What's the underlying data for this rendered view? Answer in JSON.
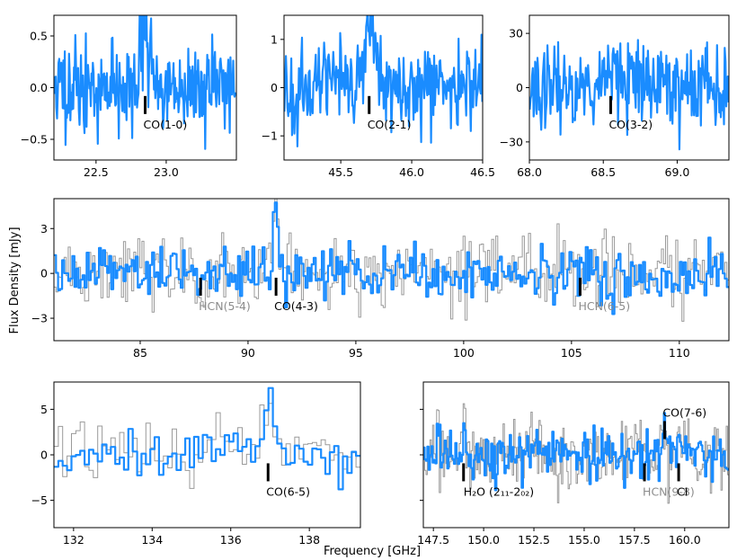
{
  "figure": {
    "ylabel": "Flux Density [mJy]",
    "xlabel": "Frequency [GHz]"
  },
  "colors": {
    "spectrum": "#1a8cff",
    "model": "#9a9a9a",
    "marker": "#000000",
    "line_label_detected": "#000000",
    "line_label_undetected": "#8c8c8c"
  },
  "chart_data": [
    {
      "type": "line",
      "panel": "CO(1-0)",
      "xlim": [
        22.2,
        23.5
      ],
      "ylim": [
        -0.7,
        0.7
      ],
      "xticks": [
        "22.5",
        "23.0"
      ],
      "yticks": [
        "-0.5",
        "0.0",
        "0.5"
      ],
      "peak": 0.57,
      "lines": [
        {
          "label": "CO(1-0)",
          "freq": 22.85,
          "detected": true
        }
      ]
    },
    {
      "type": "line",
      "panel": "CO(2-1)",
      "xlim": [
        45.1,
        46.5
      ],
      "ylim": [
        -1.5,
        1.5
      ],
      "xticks": [
        "45.5",
        "46.0",
        "46.5"
      ],
      "yticks": [
        "-1",
        "0",
        "1"
      ],
      "peak": 1.3,
      "lines": [
        {
          "label": "CO(2-1)",
          "freq": 45.7,
          "detected": true
        }
      ]
    },
    {
      "type": "line",
      "panel": "CO(3-2)",
      "xlim": [
        68.0,
        69.35
      ],
      "ylim": [
        -40,
        40
      ],
      "xticks": [
        "68.0",
        "68.5",
        "69.0"
      ],
      "yticks": [
        "-30",
        "0",
        "30"
      ],
      "peak": 12,
      "lines": [
        {
          "label": "CO(3-2)",
          "freq": 68.55,
          "detected": true
        }
      ]
    },
    {
      "type": "line",
      "panel": "85-112 GHz",
      "xlim": [
        81.0,
        112.3
      ],
      "ylim": [
        -4.5,
        5.0
      ],
      "xticks": [
        "85",
        "90",
        "95",
        "100",
        "105",
        "110"
      ],
      "yticks": [
        "-3",
        "0",
        "3"
      ],
      "peak": 4.4,
      "lines": [
        {
          "label": "HCN(5-4)",
          "freq": 87.8,
          "detected": false
        },
        {
          "label": "CO(4-3)",
          "freq": 91.3,
          "detected": true
        },
        {
          "label": "HCN(6-5)",
          "freq": 105.4,
          "detected": false
        }
      ]
    },
    {
      "type": "line",
      "panel": "CO(6-5)",
      "xlim": [
        131.5,
        139.3
      ],
      "ylim": [
        -8,
        8
      ],
      "xticks": [
        "132",
        "134",
        "136",
        "138"
      ],
      "yticks": [
        "-5",
        "0",
        "5"
      ],
      "peak": 5.7,
      "lines": [
        {
          "label": "CO(6-5)",
          "freq": 136.95,
          "detected": true
        }
      ]
    },
    {
      "type": "line",
      "panel": "147-162 GHz",
      "xlim": [
        147.0,
        162.2
      ],
      "ylim": [
        -8,
        8
      ],
      "xticks": [
        "147.5",
        "150.0",
        "152.5",
        "155.0",
        "157.5",
        "160.0"
      ],
      "yticks": [],
      "peak": 3.5,
      "lines": [
        {
          "label": "H₂O (2₁₁-2₀₂)",
          "freq": 149.0,
          "detected": true
        },
        {
          "label": "HCN(9-8)",
          "freq": 158.0,
          "detected": false
        },
        {
          "label": "CO(7-6)",
          "freq": 159.0,
          "detected": true
        },
        {
          "label": "CI",
          "freq": 159.7,
          "detected": true
        }
      ]
    }
  ]
}
